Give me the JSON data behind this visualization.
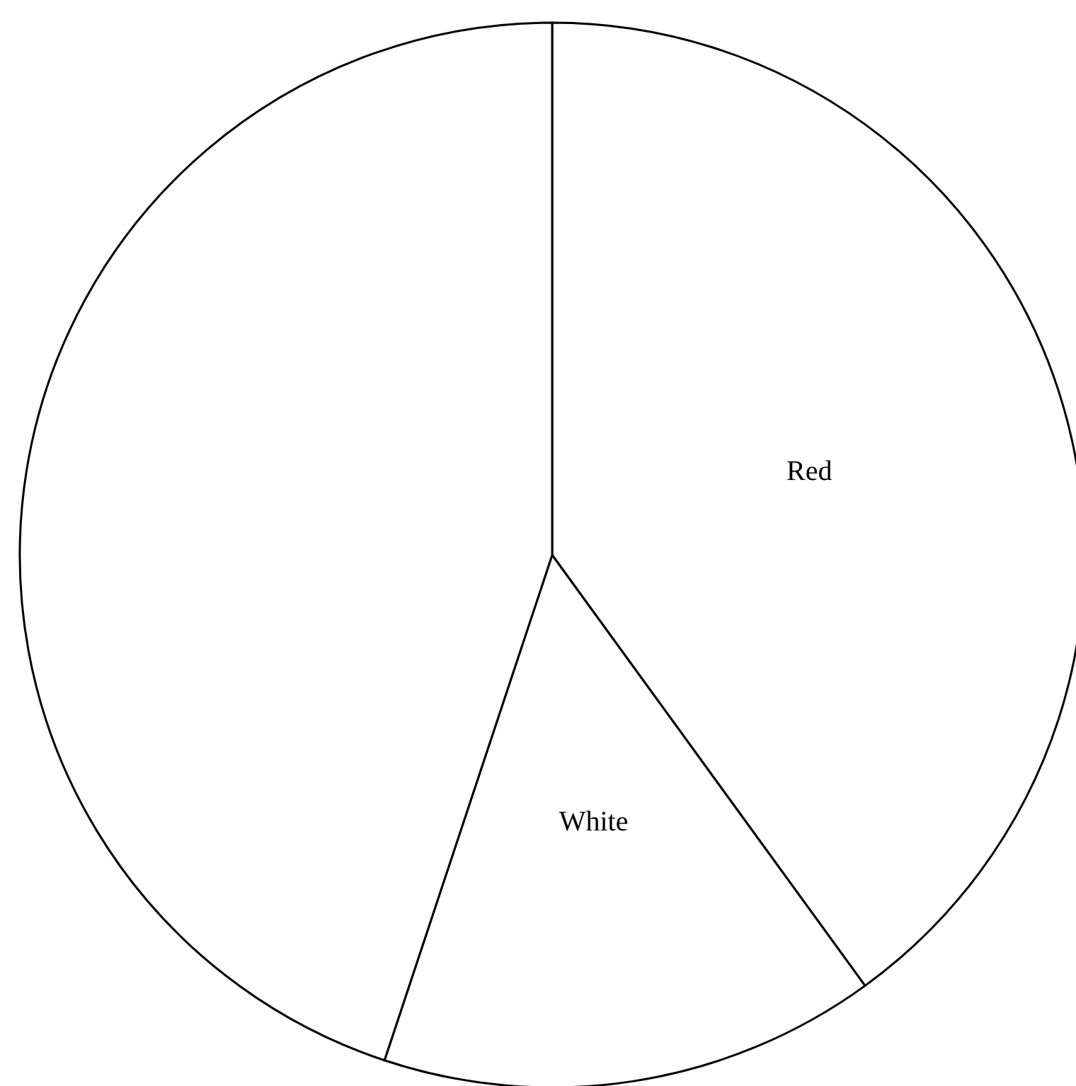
{
  "chart_data": {
    "type": "pie",
    "categories": [
      "Red",
      "White",
      null
    ],
    "values": [
      40,
      15.1,
      44.9
    ],
    "colors": [
      "#ffffff",
      "#ffffff",
      "#ffffff"
    ],
    "legend": false
  }
}
